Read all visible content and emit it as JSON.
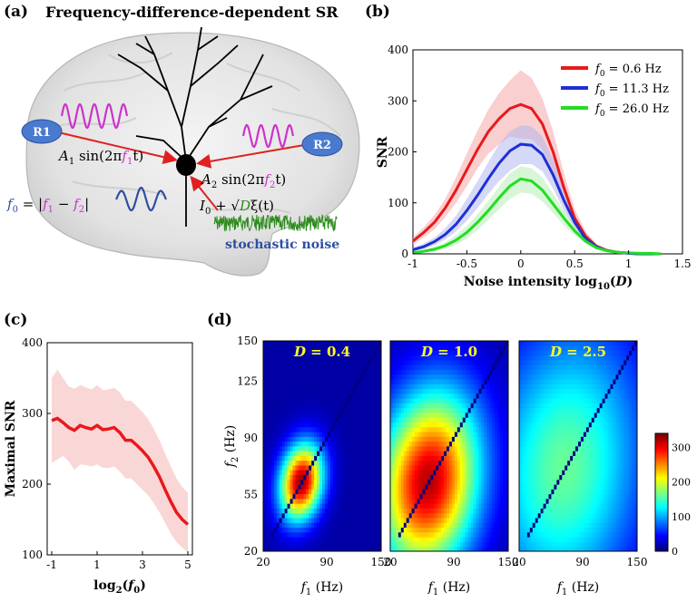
{
  "panel_a": {
    "label": "(a)",
    "title": "Frequency-difference-dependent SR",
    "r1": "R1",
    "r2": "R2",
    "signal1": {
      "prefix": "A",
      "sub": "1",
      "mid": " sin(2π",
      "f": "f",
      "fsub": "1",
      "end": "t)"
    },
    "signal2": {
      "prefix": "A",
      "sub": "2",
      "mid": " sin(2π",
      "f": "f",
      "fsub": "2",
      "end": "t)"
    },
    "f0_eq": {
      "lhs": "f",
      "lhs_sub": "0",
      "eq": " = |",
      "f1": "f",
      "f1sub": "1",
      "minus": " − ",
      "f2": "f",
      "f2sub": "2",
      "end": "|"
    },
    "noise_eq": {
      "i": "I",
      "isub": "0",
      "plus": " + √",
      "d": "D",
      "xi": "ξ(t)"
    },
    "noise_label": "stochastic noise",
    "colors": {
      "freq": "#cc33cc",
      "f0": "#2e4fa0",
      "noise": "#2e8b1e",
      "arrow": "#e02020"
    }
  },
  "chart_data": [
    {
      "panel": "(b)",
      "type": "line",
      "xlabel_main": "Noise intensity log",
      "xlabel_sub": "10",
      "xlabel_arg": "(D)",
      "ylabel": "SNR",
      "xlim": [
        -1,
        1.5
      ],
      "ylim": [
        0,
        400
      ],
      "xticks": [
        "-1",
        "-0.5",
        "0",
        "0.5",
        "1",
        "1.5"
      ],
      "xtick_values": [
        -1,
        -0.5,
        0,
        0.5,
        1,
        1.5
      ],
      "yticks": [
        "0",
        "100",
        "200",
        "300",
        "400"
      ],
      "ytick_values": [
        0,
        100,
        200,
        300,
        400
      ],
      "legend_position": "top-right",
      "x": [
        -1,
        -0.9,
        -0.8,
        -0.7,
        -0.6,
        -0.5,
        -0.4,
        -0.3,
        -0.2,
        -0.1,
        0,
        0.1,
        0.2,
        0.3,
        0.4,
        0.5,
        0.6,
        0.7,
        0.8,
        0.9,
        1.0,
        1.1,
        1.2,
        1.3
      ],
      "series": [
        {
          "name_prefix": "f",
          "name_sub": "0",
          "name_rest": " = 0.6 Hz",
          "color": "#e8191c",
          "band": "#f4a8a8",
          "values": [
            25,
            42,
            62,
            90,
            125,
            165,
            205,
            240,
            265,
            285,
            293,
            285,
            255,
            200,
            130,
            70,
            35,
            15,
            7,
            3,
            1,
            0,
            0,
            0
          ],
          "upper": [
            32,
            52,
            76,
            108,
            150,
            197,
            242,
            283,
            315,
            340,
            360,
            345,
            305,
            240,
            158,
            88,
            45,
            20,
            9,
            4,
            1,
            0,
            0,
            0
          ],
          "lower": [
            18,
            32,
            48,
            72,
            100,
            133,
            168,
            197,
            215,
            230,
            226,
            225,
            205,
            160,
            102,
            52,
            25,
            10,
            5,
            2,
            1,
            0,
            0,
            0
          ]
        },
        {
          "name_prefix": "f",
          "name_sub": "0",
          "name_rest": " = 11.3 Hz",
          "color": "#1f2fd4",
          "band": "#b3b8ee",
          "values": [
            8,
            14,
            24,
            38,
            58,
            85,
            115,
            148,
            178,
            202,
            215,
            213,
            195,
            155,
            105,
            62,
            30,
            14,
            6,
            3,
            1,
            0,
            0,
            0
          ],
          "upper": [
            12,
            20,
            32,
            50,
            75,
            108,
            143,
            180,
            215,
            240,
            252,
            250,
            230,
            185,
            128,
            76,
            38,
            18,
            8,
            4,
            1,
            0,
            0,
            0
          ],
          "lower": [
            5,
            9,
            17,
            28,
            44,
            65,
            90,
            118,
            143,
            163,
            176,
            176,
            162,
            128,
            86,
            50,
            24,
            11,
            5,
            2,
            1,
            0,
            0,
            0
          ]
        },
        {
          "name_prefix": "f",
          "name_sub": "0",
          "name_rest": " = 26.0 Hz",
          "color": "#22dd22",
          "band": "#b6eeb6",
          "values": [
            2,
            5,
            9,
            16,
            27,
            42,
            62,
            85,
            110,
            133,
            147,
            143,
            125,
            98,
            70,
            45,
            25,
            12,
            6,
            3,
            2,
            1,
            1,
            0
          ],
          "upper": [
            4,
            8,
            14,
            23,
            37,
            55,
            78,
            104,
            132,
            158,
            172,
            168,
            150,
            118,
            85,
            55,
            31,
            15,
            7,
            4,
            2,
            1,
            1,
            0
          ],
          "lower": [
            1,
            3,
            5,
            10,
            18,
            30,
            47,
            67,
            88,
            108,
            120,
            118,
            103,
            80,
            56,
            36,
            20,
            10,
            5,
            2,
            1,
            1,
            0,
            0
          ]
        }
      ]
    },
    {
      "panel": "(c)",
      "type": "line",
      "xlabel_main": "log",
      "xlabel_sub": "2",
      "xlabel_arg_open": "(",
      "xlabel_arg_f": "f",
      "xlabel_arg_fsub": "0",
      "xlabel_arg_close": ")",
      "ylabel": "Maximal SNR",
      "xlim": [
        -1.2,
        5.2
      ],
      "ylim": [
        100,
        400
      ],
      "xticks": [
        "-1",
        "1",
        "3",
        "5"
      ],
      "xtick_values": [
        -1,
        1,
        3,
        5
      ],
      "yticks": [
        "100",
        "200",
        "300",
        "400"
      ],
      "ytick_values": [
        100,
        200,
        300,
        400
      ],
      "x": [
        -1,
        -0.75,
        -0.5,
        -0.25,
        0,
        0.25,
        0.5,
        0.75,
        1,
        1.25,
        1.5,
        1.75,
        2,
        2.25,
        2.5,
        2.75,
        3,
        3.25,
        3.5,
        3.75,
        4,
        4.25,
        4.5,
        4.75,
        5
      ],
      "series": [
        {
          "name": "",
          "color": "#e8191c",
          "band": "#f6b6b6",
          "values": [
            290,
            293,
            287,
            280,
            276,
            283,
            280,
            278,
            283,
            277,
            278,
            280,
            273,
            262,
            262,
            255,
            247,
            238,
            225,
            210,
            192,
            175,
            160,
            150,
            143
          ],
          "upper": [
            350,
            362,
            350,
            338,
            335,
            340,
            337,
            334,
            340,
            333,
            334,
            336,
            330,
            318,
            318,
            310,
            302,
            292,
            278,
            262,
            243,
            225,
            208,
            196,
            188
          ],
          "lower": [
            230,
            235,
            240,
            232,
            220,
            228,
            227,
            225,
            228,
            223,
            223,
            225,
            218,
            208,
            208,
            200,
            192,
            184,
            173,
            160,
            145,
            130,
            118,
            110,
            104
          ]
        }
      ]
    },
    {
      "panel": "(d)",
      "type": "heatmap",
      "xlabel_f": "f",
      "xlabel_sub": "1",
      "xlabel_unit": " (Hz)",
      "ylabel_f": "f",
      "ylabel_sub": "2",
      "ylabel_unit": " (Hz)",
      "xlim": [
        20,
        150
      ],
      "ylim": [
        20,
        150
      ],
      "xticks": [
        "20",
        "90",
        "150"
      ],
      "xtick_values": [
        20,
        90,
        150
      ],
      "yticks": [
        "20",
        "55",
        "90",
        "125",
        "150"
      ],
      "ytick_values": [
        20,
        55,
        90,
        125,
        150
      ],
      "colorbar": {
        "min": 0,
        "max": 340,
        "ticks": [
          "0",
          "100",
          "200",
          "300"
        ],
        "tick_values": [
          0,
          100,
          200,
          300
        ]
      },
      "maps": [
        {
          "label": "D = 0.4",
          "D": "D",
          "eq": " = 0.4",
          "peak": 320,
          "cx": 62,
          "cy": 63,
          "sx": 9,
          "sy": 11,
          "spread": 0.35
        },
        {
          "label": "D = 1.0",
          "D": "D",
          "eq": " = 1.0",
          "peak": 310,
          "cx": 62,
          "cy": 63,
          "sx": 20,
          "sy": 26,
          "spread": 0.6
        },
        {
          "label": "D = 2.5",
          "D": "D",
          "eq": " = 2.5",
          "peak": 150,
          "cx": 70,
          "cy": 72,
          "sx": 30,
          "sy": 40,
          "spread": 0.8
        }
      ]
    }
  ]
}
